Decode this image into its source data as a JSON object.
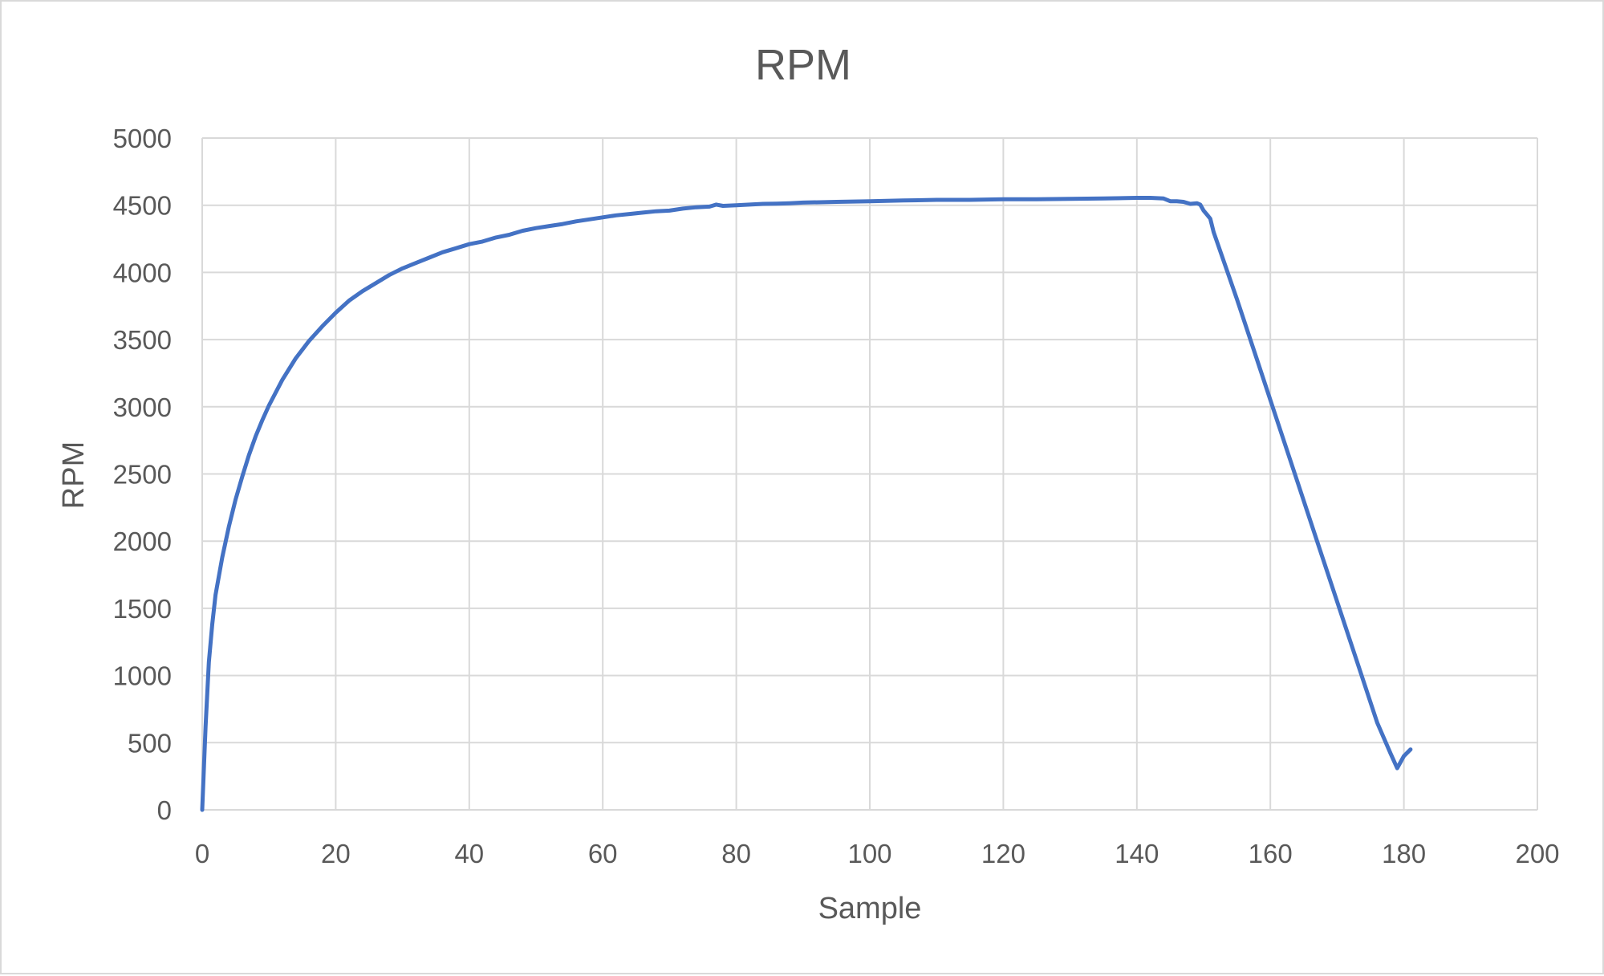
{
  "chart_data": {
    "type": "line",
    "title": "RPM",
    "xlabel": "Sample",
    "ylabel": "RPM",
    "xlim": [
      0,
      200
    ],
    "ylim": [
      0,
      5000
    ],
    "x_ticks": [
      0,
      20,
      40,
      60,
      80,
      100,
      120,
      140,
      160,
      180,
      200
    ],
    "y_ticks": [
      0,
      500,
      1000,
      1500,
      2000,
      2500,
      3000,
      3500,
      4000,
      4500,
      5000
    ],
    "grid": true,
    "legend": "none",
    "line_color": "#4472C4",
    "grid_color": "#D9D9D9",
    "text_color": "#595959",
    "series": [
      {
        "x": [
          0,
          0.5,
          1,
          1.5,
          2,
          3,
          4,
          5,
          6,
          7,
          8,
          9,
          10,
          12,
          14,
          16,
          18,
          20,
          22,
          24,
          26,
          28,
          30,
          32,
          34,
          36,
          38,
          40,
          42,
          44,
          46,
          48,
          50,
          52,
          54,
          56,
          58,
          60,
          62,
          64,
          66,
          68,
          70,
          72,
          74,
          76,
          77,
          78,
          80,
          82,
          84,
          86,
          88,
          90,
          95,
          100,
          105,
          110,
          115,
          120,
          125,
          130,
          135,
          140,
          142,
          144,
          145,
          146,
          147,
          148,
          149,
          149.5,
          150,
          150.5,
          151,
          151.5,
          152,
          155,
          158,
          161,
          164,
          167,
          170,
          173,
          176,
          178,
          179,
          180,
          181
        ],
        "y": [
          0,
          620,
          1100,
          1380,
          1600,
          1880,
          2110,
          2310,
          2480,
          2640,
          2780,
          2900,
          3010,
          3200,
          3360,
          3490,
          3600,
          3700,
          3790,
          3860,
          3920,
          3980,
          4030,
          4070,
          4110,
          4150,
          4180,
          4210,
          4230,
          4260,
          4280,
          4310,
          4330,
          4345,
          4360,
          4380,
          4395,
          4410,
          4425,
          4435,
          4445,
          4455,
          4460,
          4475,
          4485,
          4490,
          4505,
          4495,
          4500,
          4505,
          4510,
          4512,
          4515,
          4520,
          4525,
          4530,
          4535,
          4540,
          4540,
          4545,
          4545,
          4548,
          4550,
          4555,
          4555,
          4550,
          4530,
          4530,
          4525,
          4510,
          4515,
          4505,
          4460,
          4430,
          4400,
          4300,
          4230,
          3800,
          3350,
          2900,
          2450,
          2000,
          1550,
          1100,
          650,
          420,
          310,
          400,
          450
        ]
      }
    ]
  }
}
